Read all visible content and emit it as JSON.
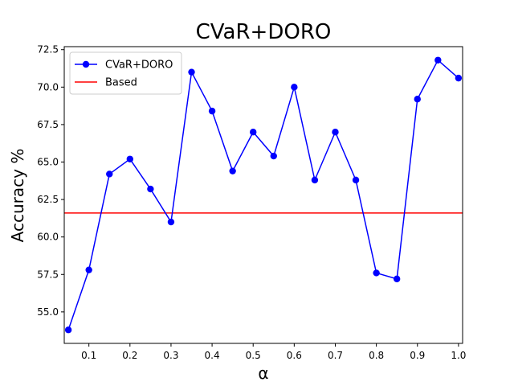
{
  "chart_data": {
    "type": "line",
    "title": "CVaR+DORO",
    "xlabel": "α",
    "ylabel": "Accuracy %",
    "xlim": [
      0.04,
      1.01
    ],
    "ylim": [
      52.9,
      72.7
    ],
    "xticks": [
      0.1,
      0.2,
      0.3,
      0.4,
      0.5,
      0.6,
      0.7,
      0.8,
      0.9,
      1.0
    ],
    "xtick_labels": [
      "0.1",
      "0.2",
      "0.3",
      "0.4",
      "0.5",
      "0.6",
      "0.7",
      "0.8",
      "0.9",
      "1.0"
    ],
    "yticks": [
      55.0,
      57.5,
      60.0,
      62.5,
      65.0,
      67.5,
      70.0,
      72.5
    ],
    "ytick_labels": [
      "55.0",
      "57.5",
      "60.0",
      "62.5",
      "65.0",
      "67.5",
      "70.0",
      "72.5"
    ],
    "grid": false,
    "legend_position": "upper-left",
    "series": [
      {
        "name": "CVaR+DORO",
        "color": "#0000ff",
        "marker": "circle",
        "x": [
          0.05,
          0.1,
          0.15,
          0.2,
          0.25,
          0.3,
          0.35,
          0.4,
          0.45,
          0.5,
          0.55,
          0.6,
          0.65,
          0.7,
          0.75,
          0.8,
          0.85,
          0.9,
          0.95,
          1.0
        ],
        "y": [
          53.8,
          57.8,
          64.2,
          65.2,
          63.2,
          61.0,
          71.0,
          68.4,
          64.4,
          67.0,
          65.4,
          70.0,
          63.8,
          67.0,
          63.8,
          57.6,
          57.2,
          69.2,
          71.8,
          70.6
        ]
      }
    ],
    "reference_lines": [
      {
        "name": "Based",
        "color": "#ff0000",
        "y": 61.6
      }
    ]
  }
}
